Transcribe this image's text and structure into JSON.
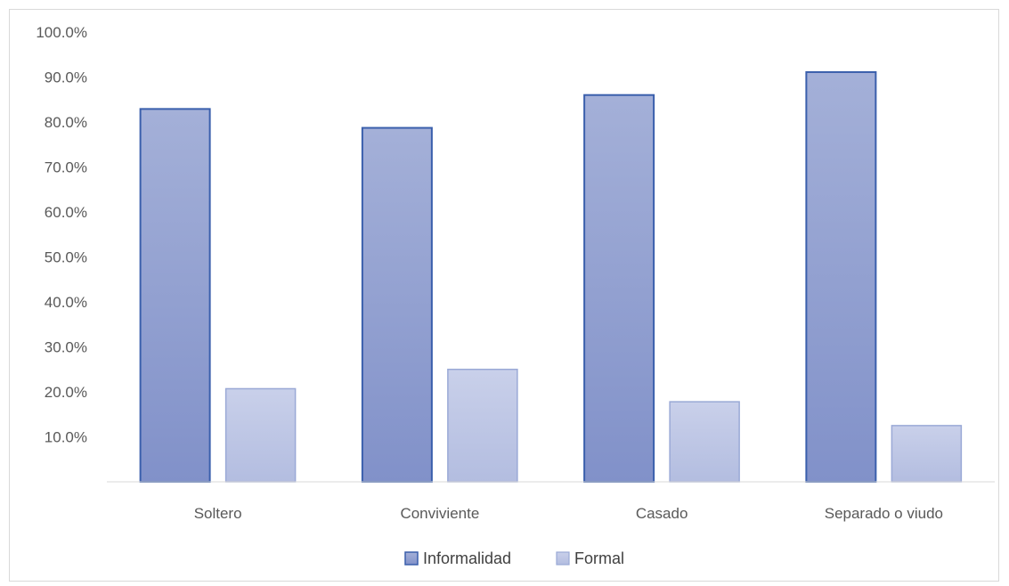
{
  "chart_data": {
    "type": "bar",
    "categories": [
      "Soltero",
      "Conviviente",
      "Casado",
      "Separado o viudo"
    ],
    "series": [
      {
        "name": "Informalidad",
        "values": [
          82.9,
          78.7,
          86.0,
          91.1
        ],
        "color": "#8f9ecf",
        "stroke": "#3a5fac"
      },
      {
        "name": "Formal",
        "values": [
          20.7,
          25.0,
          17.8,
          12.5
        ],
        "color": "#bcc5e3",
        "stroke": "#9aa9d6"
      }
    ],
    "y_ticks": [
      "10.0%",
      "20.0%",
      "30.0%",
      "40.0%",
      "50.0%",
      "60.0%",
      "70.0%",
      "80.0%",
      "90.0%",
      "100.0%"
    ],
    "ylim": [
      0,
      100
    ],
    "grid": false,
    "legend_position": "bottom",
    "title": "",
    "xlabel": "",
    "ylabel": ""
  }
}
